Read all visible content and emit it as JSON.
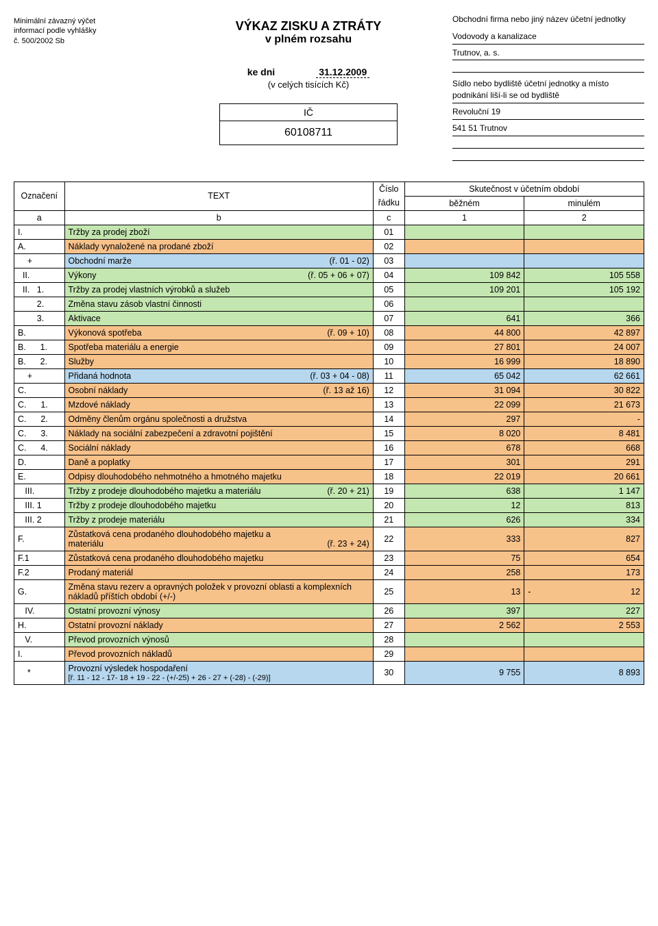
{
  "header": {
    "left_note_l1": "Minimální závazný výčet",
    "left_note_l2": "informací podle vyhlášky",
    "left_note_l3": "č. 500/2002 Sb",
    "title": "VÝKAZ ZISKU A ZTRÁTY",
    "subtitle": "v plném rozsahu",
    "ke_dni_label": "ke dni",
    "ke_dni_date": "31.12.2009",
    "units_note": "(v celých tisících Kč)",
    "ic_label": "IČ",
    "ic_value": "60108711",
    "right_label1": "Obchodní firma nebo jiný název účetní jednotky",
    "company_l1": "Vodovody a kanalizace",
    "company_l2": "Trutnov, a. s.",
    "right_label2": "Sídlo nebo bydliště účetní jednotky a místo podnikání liší-li se od bydliště",
    "addr_l1": "Revoluční 19",
    "addr_l2": "541 51  Trutnov"
  },
  "colors": {
    "orange": "#f7c18a",
    "green": "#c4e6b0",
    "blue": "#b7d7ee"
  },
  "thead": {
    "oznaceni": "Označení",
    "text": "TEXT",
    "cislo": "Číslo",
    "radku": "řádku",
    "skutecnost": "Skutečnost v účetním období",
    "bezne": "běžném",
    "minule": "minulém",
    "a": "a",
    "b": "b",
    "c": "c",
    "v1": "1",
    "v2": "2"
  },
  "rows": [
    {
      "a": "I.",
      "b": "Tržby za prodej zboží",
      "bref": "",
      "c": "01",
      "v1": "",
      "v2": "",
      "bg": "green"
    },
    {
      "a": "A.",
      "b": "Náklady vynaložené na prodané zboží",
      "bref": "",
      "c": "02",
      "v1": "",
      "v2": "",
      "bg": "orange"
    },
    {
      "a": "    +",
      "b": "Obchodní marže",
      "bref": "(ř. 01 - 02)",
      "c": "03",
      "v1": "",
      "v2": "",
      "bg": "blue"
    },
    {
      "a": "  II.",
      "b": "Výkony",
      "bref": "(ř. 05 + 06 + 07)",
      "c": "04",
      "v1": "109 842",
      "v2": "105 558",
      "bg": "green"
    },
    {
      "a": "  II.   1.",
      "b": "Tržby za prodej vlastních výrobků a služeb",
      "bref": "",
      "c": "05",
      "v1": "109 201",
      "v2": "105 192",
      "bg": "green"
    },
    {
      "a": "        2.",
      "b": "Změna stavu zásob vlastní činnosti",
      "bref": "",
      "c": "06",
      "v1": "",
      "v2": "",
      "bg": "green"
    },
    {
      "a": "        3.",
      "b": "Aktivace",
      "bref": "",
      "c": "07",
      "v1": "641",
      "v2": "366",
      "bg": "green"
    },
    {
      "a": "B.",
      "b": "Výkonová spotřeba",
      "bref": "(ř. 09 + 10)",
      "c": "08",
      "v1": "44 800",
      "v2": "42 897",
      "bg": "orange"
    },
    {
      "a": "B.      1.",
      "b": "Spotřeba materiálu a energie",
      "bref": "",
      "c": "09",
      "v1": "27 801",
      "v2": "24 007",
      "bg": "orange"
    },
    {
      "a": "B.      2.",
      "b": "Služby",
      "bref": "",
      "c": "10",
      "v1": "16 999",
      "v2": "18 890",
      "bg": "orange"
    },
    {
      "a": "    +",
      "b": "Přidaná hodnota",
      "bref": "(ř. 03 + 04 - 08)",
      "c": "11",
      "v1": "65 042",
      "v2": "62 661",
      "bg": "blue"
    },
    {
      "a": "C.",
      "b": "Osobní náklady",
      "bref": "(ř. 13 až 16)",
      "c": "12",
      "v1": "31 094",
      "v2": "30 822",
      "bg": "orange"
    },
    {
      "a": "C.      1.",
      "b": "Mzdové náklady",
      "bref": "",
      "c": "13",
      "v1": "22 099",
      "v2": "21 673",
      "bg": "orange"
    },
    {
      "a": "C.      2.",
      "b": "Odměny členům orgánu společnosti a družstva",
      "bref": "",
      "c": "14",
      "v1": "297",
      "v2": "-",
      "bg": "orange"
    },
    {
      "a": "C.      3.",
      "b": "Náklady na sociální zabezpečení a zdravotní pojištění",
      "bref": "",
      "c": "15",
      "v1": "8 020",
      "v2": "8 481",
      "bg": "orange"
    },
    {
      "a": "C.      4.",
      "b": "Sociální náklady",
      "bref": "",
      "c": "16",
      "v1": "678",
      "v2": "668",
      "bg": "orange"
    },
    {
      "a": "D.",
      "b": "Daně a poplatky",
      "bref": "",
      "c": "17",
      "v1": "301",
      "v2": "291",
      "bg": "orange"
    },
    {
      "a": "E.",
      "b": "Odpisy dlouhodobého nehmotného a hmotného majetku",
      "bref": "",
      "c": "18",
      "v1": "22 019",
      "v2": "20 661",
      "bg": "orange"
    },
    {
      "a": "   III.",
      "b": "Tržby z prodeje dlouhodobého majetku a materiálu",
      "bref": "(ř. 20 + 21)",
      "c": "19",
      "v1": "638",
      "v2": "1 147",
      "bg": "green"
    },
    {
      "a": "   III. 1",
      "b": "Tržby z prodeje dlouhodobého majetku",
      "bref": "",
      "c": "20",
      "v1": "12",
      "v2": "813",
      "bg": "green"
    },
    {
      "a": "   III. 2",
      "b": "Tržby z prodeje materiálu",
      "bref": "",
      "c": "21",
      "v1": "626",
      "v2": "334",
      "bg": "green"
    },
    {
      "a": "F.",
      "b": "Zůstatková cena prodaného dlouhodobého majetku a materiálu",
      "bref": "(ř. 23 + 24)",
      "c": "22",
      "v1": "333",
      "v2": "827",
      "bg": "orange",
      "multib": true
    },
    {
      "a": "F.1",
      "b": "Zůstatková cena prodaného dlouhodobého majetku",
      "bref": "",
      "c": "23",
      "v1": "75",
      "v2": "654",
      "bg": "orange"
    },
    {
      "a": "F.2",
      "b": "Prodaný materiál",
      "bref": "",
      "c": "24",
      "v1": "258",
      "v2": "173",
      "bg": "orange"
    },
    {
      "a": "G.",
      "b": "Změna stavu rezerv a opravných položek v provozní oblasti a komplexních nákladů příštích období (+/-)",
      "bref": "",
      "c": "25",
      "v1": "13",
      "v2neg": "12",
      "bg": "orange"
    },
    {
      "a": "   IV.",
      "b": "Ostatní provozní výnosy",
      "bref": "",
      "c": "26",
      "v1": "397",
      "v2": "227",
      "bg": "green"
    },
    {
      "a": "H.",
      "b": "Ostatní provozní náklady",
      "bref": "",
      "c": "27",
      "v1": "2 562",
      "v2": "2 553",
      "bg": "orange"
    },
    {
      "a": "   V.",
      "b": "Převod provozních výnosů",
      "bref": "",
      "c": "28",
      "v1": "",
      "v2": "",
      "bg": "green"
    },
    {
      "a": "I.",
      "b": "Převod provozních nákladů",
      "bref": "",
      "c": "29",
      "v1": "",
      "v2": "",
      "bg": "orange"
    },
    {
      "a": "    *",
      "b": "Provozní výsledek hospodaření",
      "bsub": "[ř. 11 - 12 - 17- 18 + 19 - 22 - (+/-25) + 26 - 27 + (-28) - (-29)]",
      "c": "30",
      "v1": "9 755",
      "v2": "8 893",
      "bg": "blue"
    }
  ]
}
